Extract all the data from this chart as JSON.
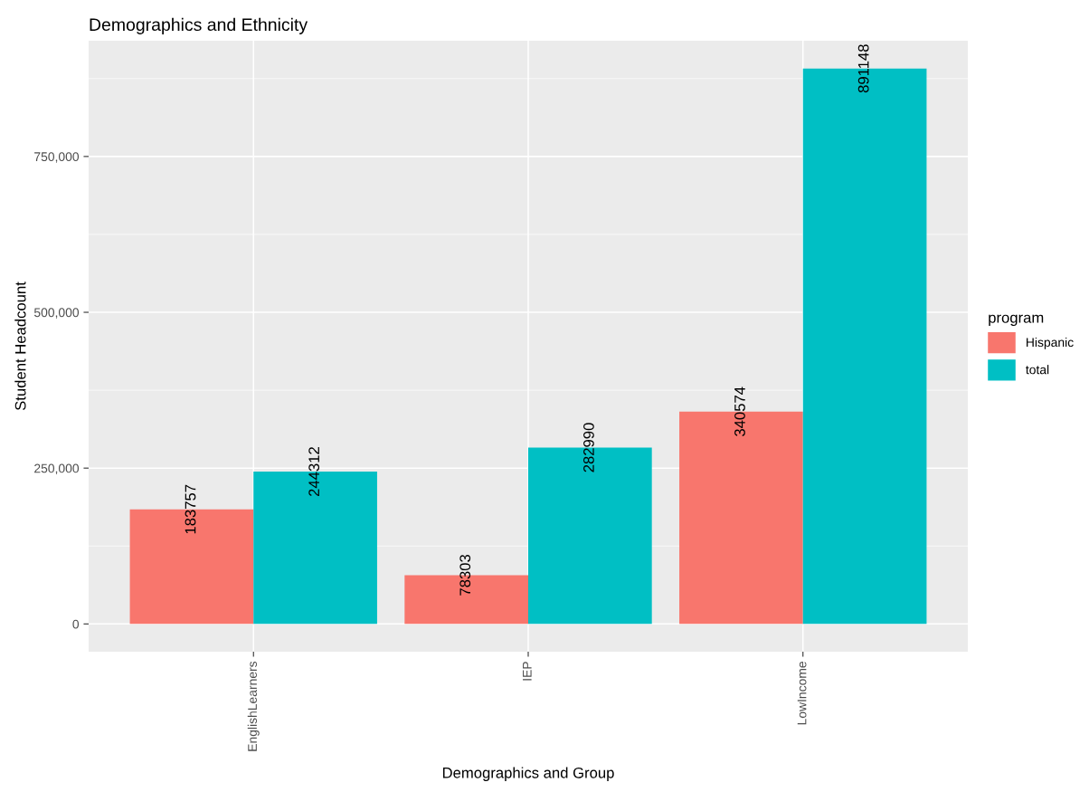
{
  "chart_data": {
    "type": "bar",
    "title": "Demographics and Ethnicity",
    "xlabel": "Demographics and Group",
    "ylabel": "Student Headcount",
    "legend_title": "program",
    "categories": [
      "EnglishLearners",
      "IEP",
      "LowIncome"
    ],
    "series": [
      {
        "name": "Hispanic",
        "color": "#f8766d",
        "values": [
          183757,
          78303,
          340574
        ]
      },
      {
        "name": "total",
        "color": "#00bfc4",
        "values": [
          244312,
          282990,
          891148
        ]
      }
    ],
    "ylim": [
      -44557,
      935705
    ],
    "yticks": [
      {
        "value": 0,
        "label": "0"
      },
      {
        "value": 250000,
        "label": "250,000"
      },
      {
        "value": 500000,
        "label": "500,000"
      },
      {
        "value": 750000,
        "label": "750,000"
      }
    ],
    "grid": true,
    "legend": "right",
    "data_labels": true
  }
}
